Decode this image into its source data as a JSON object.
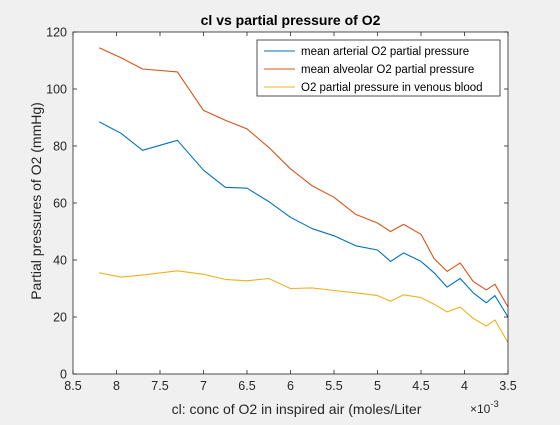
{
  "chart_data": {
    "type": "line",
    "title": "cl vs partial pressure of O2",
    "xlabel": "cl: conc of O2 in inspired air (moles/Liter",
    "ylabel": "Partial pressures of O2 (mmHg)",
    "x_exponent_label": "×10",
    "x_exponent_power": "-3",
    "xlim": [
      8.5,
      3.5
    ],
    "ylim": [
      0,
      120
    ],
    "x_reversed": true,
    "x_ticks": [
      8.5,
      8,
      7.5,
      7,
      6.5,
      6,
      5.5,
      5,
      4.5,
      4,
      3.5
    ],
    "x_tick_labels": [
      "8.5",
      "8",
      "7.5",
      "7",
      "6.5",
      "6",
      "5.5",
      "5",
      "4.5",
      "4",
      "3.5"
    ],
    "y_ticks": [
      0,
      20,
      40,
      60,
      80,
      100,
      120
    ],
    "y_tick_labels": [
      "0",
      "20",
      "40",
      "60",
      "80",
      "100",
      "120"
    ],
    "grid": false,
    "legend_position": "top-right",
    "x": [
      8.2,
      7.95,
      7.7,
      7.3,
      7.0,
      6.75,
      6.5,
      6.25,
      6.0,
      5.75,
      5.5,
      5.25,
      5.0,
      4.85,
      4.7,
      4.5,
      4.35,
      4.2,
      4.05,
      3.9,
      3.75,
      3.65,
      3.5
    ],
    "series": [
      {
        "name": "mean arterial O2 partial pressure",
        "color": "#0072BD",
        "values": [
          88.5,
          84.5,
          78.5,
          82,
          71.5,
          65.5,
          65.2,
          60.5,
          55,
          51,
          48.5,
          45,
          43.5,
          39.5,
          42.5,
          39.5,
          35.5,
          30.5,
          33.5,
          28.5,
          25,
          27.5,
          20
        ]
      },
      {
        "name": "mean alveolar O2 partial pressure",
        "color": "#D95319",
        "values": [
          114.5,
          111,
          107,
          106,
          92.5,
          89,
          86,
          79.5,
          72,
          66,
          62,
          56,
          53,
          50,
          52.5,
          49,
          40.5,
          36,
          39,
          32.5,
          29.5,
          31.5,
          23.5
        ]
      },
      {
        "name": "O2 partial pressure in venous blood",
        "color": "#EDB120",
        "values": [
          35.5,
          34,
          34.7,
          36.2,
          35,
          33.2,
          32.7,
          33.5,
          30,
          30.2,
          29.3,
          28.5,
          27.5,
          25.5,
          27.8,
          26.8,
          24.5,
          21.8,
          23.5,
          19.5,
          16.8,
          19,
          11
        ]
      }
    ]
  }
}
